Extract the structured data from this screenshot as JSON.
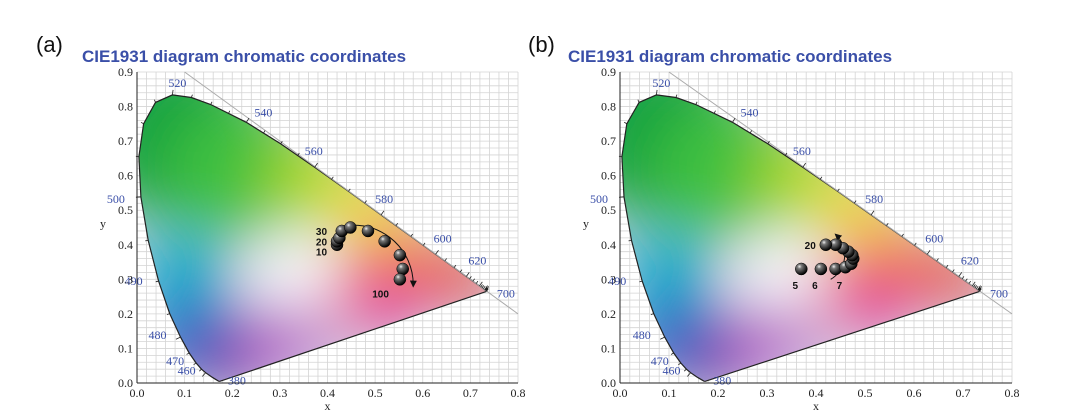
{
  "chart_data": [
    {
      "type": "scatter",
      "panel_label": "(a)",
      "title": "CIE1931 diagram chromatic coordinates",
      "xlabel": "x",
      "ylabel": "y",
      "xlim": [
        0.0,
        0.8
      ],
      "ylim": [
        0.0,
        0.9
      ],
      "x_ticks": [
        "0.0",
        "0.1",
        "0.2",
        "0.3",
        "0.4",
        "0.5",
        "0.6",
        "0.7",
        "0.8"
      ],
      "y_ticks": [
        "0.0",
        "0.1",
        "0.2",
        "0.3",
        "0.4",
        "0.5",
        "0.6",
        "0.7",
        "0.8",
        "0.9"
      ],
      "grid": true,
      "wavelength_labels": [
        "380",
        "460",
        "470",
        "480",
        "490",
        "500",
        "520",
        "540",
        "560",
        "580",
        "600",
        "620",
        "700"
      ],
      "series": [
        {
          "name": "trajectory",
          "x": [
            0.42,
            0.42,
            0.425,
            0.43,
            0.448,
            0.485,
            0.52,
            0.552,
            0.558,
            0.552
          ],
          "y": [
            0.4,
            0.41,
            0.42,
            0.44,
            0.45,
            0.44,
            0.41,
            0.37,
            0.33,
            0.3
          ]
        }
      ],
      "point_labels": [
        {
          "text": "30",
          "x": 0.42,
          "y": 0.44
        },
        {
          "text": "20",
          "x": 0.42,
          "y": 0.41
        },
        {
          "text": "10",
          "x": 0.42,
          "y": 0.38
        },
        {
          "text": "100",
          "x": 0.55,
          "y": 0.3
        }
      ],
      "arrow": {
        "direction": "clockwise",
        "from": [
          0.42,
          0.45
        ],
        "to": [
          0.58,
          0.28
        ]
      }
    },
    {
      "type": "scatter",
      "panel_label": "(b)",
      "title": "CIE1931 diagram chromatic coordinates",
      "xlabel": "x",
      "ylabel": "y",
      "xlim": [
        0.0,
        0.8
      ],
      "ylim": [
        0.0,
        0.9
      ],
      "x_ticks": [
        "0.0",
        "0.1",
        "0.2",
        "0.3",
        "0.4",
        "0.5",
        "0.6",
        "0.7",
        "0.8"
      ],
      "y_ticks": [
        "0.0",
        "0.1",
        "0.2",
        "0.3",
        "0.4",
        "0.5",
        "0.6",
        "0.7",
        "0.8",
        "0.9"
      ],
      "grid": true,
      "wavelength_labels": [
        "380",
        "460",
        "470",
        "480",
        "490",
        "500",
        "520",
        "540",
        "560",
        "580",
        "600",
        "620",
        "700"
      ],
      "series": [
        {
          "name": "trajectory",
          "x": [
            0.37,
            0.41,
            0.44,
            0.46,
            0.472,
            0.476,
            0.474,
            0.466,
            0.455,
            0.44,
            0.42
          ],
          "y": [
            0.33,
            0.33,
            0.33,
            0.335,
            0.345,
            0.36,
            0.37,
            0.38,
            0.39,
            0.4,
            0.4
          ]
        }
      ],
      "point_labels": [
        {
          "text": "20",
          "x": 0.42,
          "y": 0.4
        },
        {
          "text": "5",
          "x": 0.37,
          "y": 0.33
        },
        {
          "text": "6",
          "x": 0.41,
          "y": 0.33
        },
        {
          "text": "7",
          "x": 0.46,
          "y": 0.33
        }
      ],
      "arrow": {
        "direction": "counterclockwise",
        "from": [
          0.43,
          0.3
        ],
        "to": [
          0.44,
          0.43
        ]
      }
    }
  ]
}
